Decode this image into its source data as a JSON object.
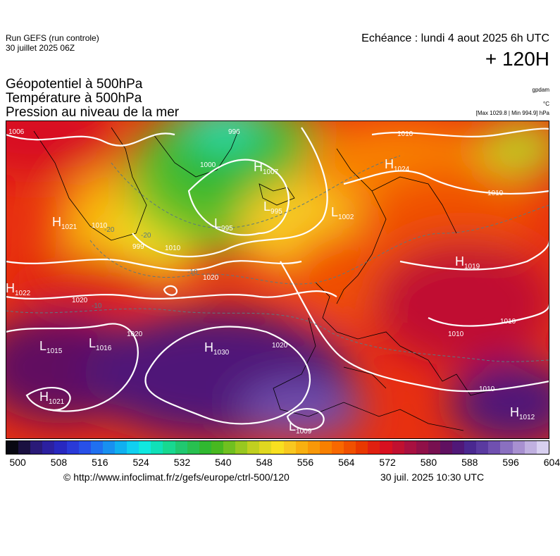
{
  "header": {
    "run_title": "Run GEFS (run controle)",
    "run_date": "30 juillet 2025 06Z",
    "valid_time": "Echéance : lundi 4 aout 2025 6h UTC",
    "lead_time": "+ 120H"
  },
  "fields": [
    "Géopotentiel à 500hPa",
    "Température à 500hPa",
    "Pression au niveau de la mer"
  ],
  "units": {
    "geopotential": "gpdam",
    "temperature": "°C",
    "pressure_range": "[Max 1029.8 | Min 994.9] hPa"
  },
  "pressure_centers": [
    {
      "type": "H",
      "value": "1007"
    },
    {
      "type": "L",
      "value": "995"
    },
    {
      "type": "L",
      "value": "995"
    },
    {
      "type": "H",
      "value": "1024"
    },
    {
      "type": "L",
      "value": "1002"
    },
    {
      "type": "H",
      "value": "1021"
    },
    {
      "type": "H",
      "value": "1019"
    },
    {
      "type": "H",
      "value": "1022"
    },
    {
      "type": "L",
      "value": "1015"
    },
    {
      "type": "L",
      "value": "1016"
    },
    {
      "type": "H",
      "value": "1030"
    },
    {
      "type": "H",
      "value": "1021"
    },
    {
      "type": "L",
      "value": "1009"
    },
    {
      "type": "H",
      "value": "1012"
    }
  ],
  "isobar_labels": [
    "1006",
    "996",
    "1000",
    "1010",
    "1010",
    "1010",
    "999",
    "1010",
    "1020",
    "1020",
    "1020",
    "1020",
    "1010",
    "1010",
    "1010"
  ],
  "temperature_labels": [
    "-20",
    "-20",
    "-10",
    "-10"
  ],
  "colorbar": {
    "colors": [
      "#080812",
      "#1a1040",
      "#2a1a78",
      "#2c20a0",
      "#2828c0",
      "#2a3ad8",
      "#2850e8",
      "#2070f0",
      "#1890f0",
      "#10b0f0",
      "#10d0f0",
      "#10e8e0",
      "#10e0b8",
      "#18d890",
      "#20c870",
      "#28c050",
      "#30b830",
      "#48b820",
      "#70c020",
      "#98c820",
      "#c0d020",
      "#e0d820",
      "#f8e020",
      "#f8c820",
      "#f8b010",
      "#f89808",
      "#f88000",
      "#f86800",
      "#f05000",
      "#e83800",
      "#e02010",
      "#d81020",
      "#c01030",
      "#a81040",
      "#901048",
      "#781050",
      "#601060",
      "#501878",
      "#4a2890",
      "#5a3aa0",
      "#7050b0",
      "#8a70c0",
      "#a890d0",
      "#c0b0e0",
      "#d8d0f0"
    ],
    "ticks": [
      "500",
      "508",
      "516",
      "524",
      "532",
      "540",
      "548",
      "556",
      "564",
      "572",
      "580",
      "588",
      "596",
      "604"
    ]
  },
  "footer": {
    "copyright": "© http://www.infoclimat.fr/z/gefs/europe/ctrl-500/120",
    "generated": "30 juil. 2025 10:30 UTC"
  }
}
